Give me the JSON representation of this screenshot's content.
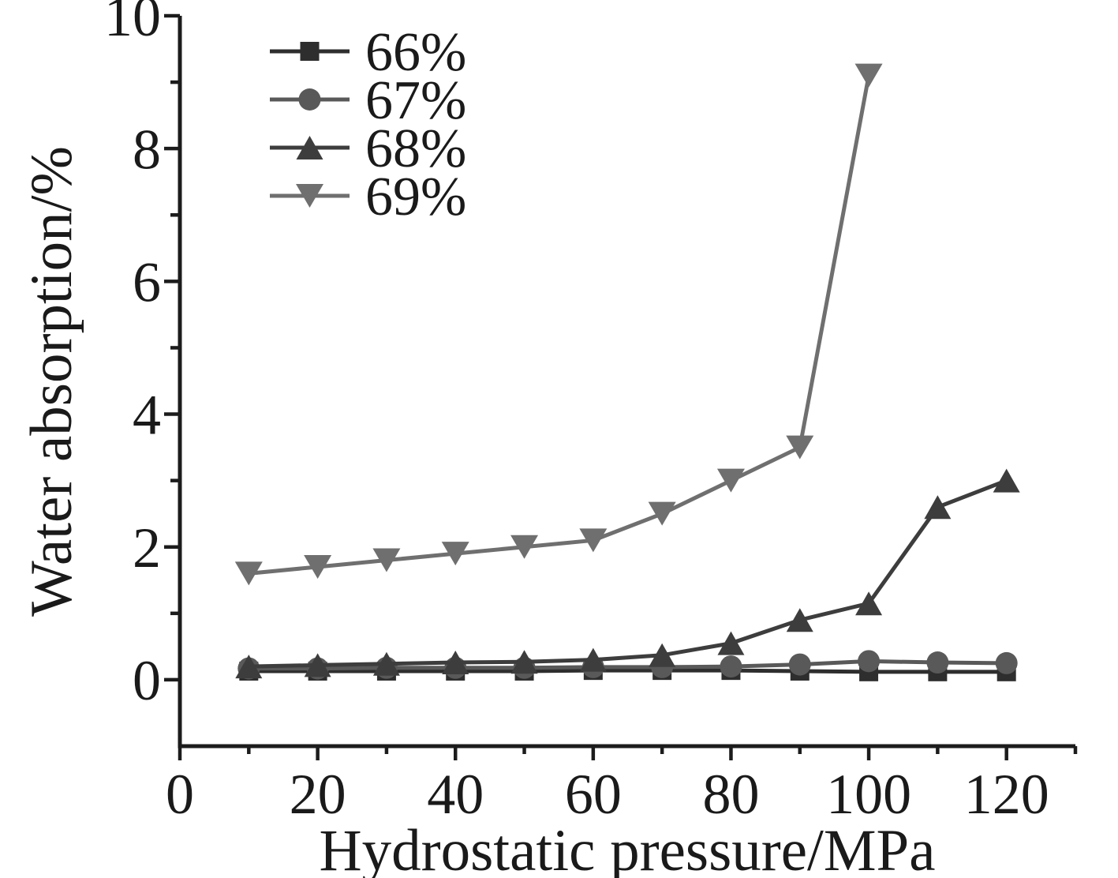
{
  "chart_data": {
    "type": "line",
    "title": "",
    "xlabel": "Hydrostatic pressure/MPa",
    "ylabel": "Water absorption/%",
    "xlim": [
      0,
      130
    ],
    "ylim": [
      -1,
      10
    ],
    "x_major_ticks": [
      0,
      20,
      40,
      60,
      80,
      100,
      120
    ],
    "x_minor_ticks": [
      10,
      30,
      50,
      70,
      90,
      110,
      130
    ],
    "y_major_ticks": [
      0,
      2,
      4,
      6,
      8,
      10
    ],
    "y_minor_ticks": [
      1,
      3,
      5,
      7,
      9
    ],
    "grid": false,
    "legend_position": "top-left",
    "axis_color": "#1c1c1c",
    "series": [
      {
        "name": "66%",
        "marker": "square",
        "color": "#2e2e2e",
        "x": [
          10,
          20,
          30,
          40,
          50,
          60,
          70,
          80,
          90,
          100,
          110,
          120
        ],
        "y": [
          0.13,
          0.13,
          0.13,
          0.13,
          0.13,
          0.14,
          0.14,
          0.14,
          0.13,
          0.12,
          0.12,
          0.12
        ]
      },
      {
        "name": "67%",
        "marker": "circle",
        "color": "#595959",
        "x": [
          10,
          20,
          30,
          40,
          50,
          60,
          70,
          80,
          90,
          100,
          110,
          120
        ],
        "y": [
          0.17,
          0.17,
          0.18,
          0.18,
          0.18,
          0.19,
          0.19,
          0.2,
          0.23,
          0.28,
          0.26,
          0.25
        ]
      },
      {
        "name": "68%",
        "marker": "triangle-up",
        "color": "#3d3d3d",
        "x": [
          10,
          20,
          30,
          40,
          50,
          60,
          70,
          80,
          90,
          100,
          110,
          120
        ],
        "y": [
          0.2,
          0.22,
          0.24,
          0.26,
          0.27,
          0.3,
          0.37,
          0.55,
          0.9,
          1.15,
          2.6,
          3.0
        ]
      },
      {
        "name": "69%",
        "marker": "triangle-down",
        "color": "#6f6f6f",
        "x": [
          10,
          20,
          30,
          40,
          50,
          60,
          70,
          80,
          90,
          100
        ],
        "y": [
          1.6,
          1.7,
          1.8,
          1.9,
          2.0,
          2.1,
          2.5,
          3.0,
          3.5,
          9.1
        ]
      }
    ]
  }
}
